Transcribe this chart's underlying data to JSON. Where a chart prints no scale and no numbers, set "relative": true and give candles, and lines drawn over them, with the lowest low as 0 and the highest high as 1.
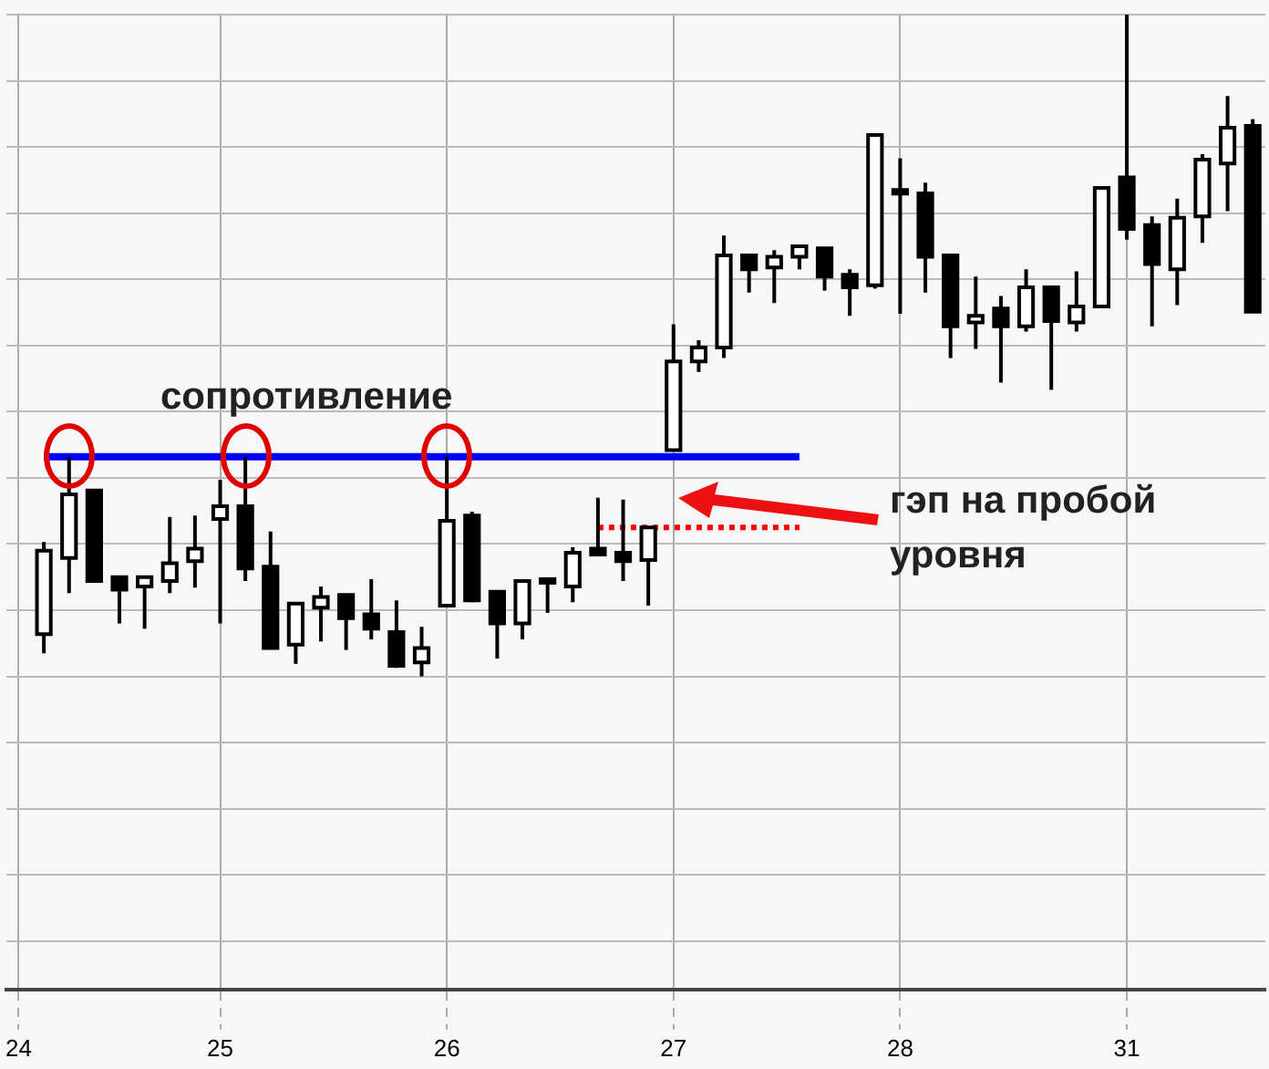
{
  "chart_data": {
    "type": "candlestick",
    "relative": true,
    "grid": true,
    "tick_labels": "x",
    "categories": [
      "24",
      null,
      null,
      null,
      null,
      null,
      null,
      null,
      "25",
      null,
      null,
      null,
      null,
      null,
      null,
      null,
      null,
      "26",
      null,
      null,
      null,
      null,
      null,
      null,
      null,
      null,
      "27",
      null,
      null,
      null,
      null,
      null,
      null,
      null,
      null,
      "28",
      null,
      null,
      null,
      null,
      null,
      null,
      null,
      null,
      "31",
      null,
      null,
      null,
      null,
      null
    ],
    "ohlc": [
      null,
      [
        0.064,
        0.203,
        0.035,
        0.19
      ],
      [
        0.179,
        0.332,
        0.126,
        0.275
      ],
      [
        0.281,
        0.283,
        0.144,
        0.144
      ],
      [
        0.15,
        0.15,
        0.08,
        0.131
      ],
      [
        0.136,
        0.15,
        0.072,
        0.15
      ],
      [
        0.144,
        0.241,
        0.126,
        0.171
      ],
      [
        0.174,
        0.243,
        0.134,
        0.193
      ],
      [
        0.238,
        0.297,
        0.08,
        0.257
      ],
      [
        0.257,
        0.332,
        0.144,
        0.163
      ],
      [
        0.166,
        0.219,
        0.043,
        0.043
      ],
      [
        0.048,
        0.11,
        0.019,
        0.11
      ],
      [
        0.104,
        0.136,
        0.053,
        0.12
      ],
      [
        0.123,
        0.123,
        0.04,
        0.088
      ],
      [
        0.094,
        0.147,
        0.056,
        0.072
      ],
      [
        0.067,
        0.115,
        0.013,
        0.016
      ],
      [
        0.021,
        0.075,
        0,
        0.043
      ],
      [
        0.107,
        0.332,
        0.107,
        0.235
      ],
      [
        0.243,
        0.249,
        0.112,
        0.115
      ],
      [
        0.128,
        0.128,
        0.027,
        0.08
      ],
      [
        0.08,
        0.144,
        0.056,
        0.144
      ],
      [
        0.142,
        0.147,
        0.096,
        0.147
      ],
      [
        0.136,
        0.195,
        0.112,
        0.187
      ],
      [
        0.193,
        0.27,
        0.184,
        0.184
      ],
      [
        0.187,
        0.267,
        0.144,
        0.174
      ],
      [
        0.176,
        0.225,
        0.107,
        0.225
      ],
      [
        0.342,
        0.532,
        0.342,
        0.476
      ],
      [
        0.476,
        0.508,
        0.46,
        0.497
      ],
      [
        0.497,
        0.666,
        0.481,
        0.636
      ],
      [
        0.636,
        0.636,
        0.58,
        0.615
      ],
      [
        0.618,
        0.644,
        0.564,
        0.634
      ],
      [
        0.634,
        0.65,
        0.615,
        0.65
      ],
      [
        0.647,
        0.647,
        0.583,
        0.604
      ],
      [
        0.607,
        0.615,
        0.545,
        0.588
      ],
      [
        0.591,
        0.818,
        0.586,
        0.818
      ],
      [
        0.735,
        0.783,
        0.548,
        0.73
      ],
      [
        0.73,
        0.746,
        0.58,
        0.634
      ],
      [
        0.636,
        0.636,
        0.481,
        0.529
      ],
      [
        0.535,
        0.604,
        0.495,
        0.545
      ],
      [
        0.556,
        0.575,
        0.444,
        0.529
      ],
      [
        0.529,
        0.615,
        0.521,
        0.588
      ],
      [
        0.588,
        0.588,
        0.433,
        0.537
      ],
      [
        0.535,
        0.612,
        0.521,
        0.559
      ],
      [
        0.559,
        0.738,
        0.559,
        0.738
      ],
      [
        0.754,
        1,
        0.66,
        0.676
      ],
      [
        0.682,
        0.695,
        0.529,
        0.623
      ],
      [
        0.615,
        0.722,
        0.561,
        0.693
      ],
      [
        0.695,
        0.789,
        0.655,
        0.781
      ],
      [
        0.775,
        0.877,
        0.703,
        0.829
      ],
      [
        0.832,
        0.842,
        0.551,
        0.551
      ]
    ],
    "series": [
      {
        "type": "line",
        "color": "#0000ff",
        "line_style": "solid",
        "values": [
          null,
          0.332,
          null,
          null,
          null,
          null,
          null,
          null,
          null,
          null,
          null,
          null,
          null,
          null,
          null,
          null,
          null,
          null,
          null,
          null,
          null,
          null,
          null,
          null,
          null,
          null,
          null,
          null,
          null,
          null,
          null,
          0.332,
          null,
          null,
          null,
          null,
          null,
          null,
          null,
          null,
          null,
          null,
          null,
          null,
          null,
          null,
          null,
          null,
          null,
          null
        ]
      },
      {
        "type": "line",
        "color": "#ff0000",
        "line_style": "dotted",
        "values": [
          null,
          null,
          null,
          null,
          null,
          null,
          null,
          null,
          null,
          null,
          null,
          null,
          null,
          null,
          null,
          null,
          null,
          null,
          null,
          null,
          null,
          null,
          null,
          0.225,
          null,
          null,
          null,
          null,
          null,
          null,
          null,
          0.225,
          null,
          null,
          null,
          null,
          null,
          null,
          null,
          null,
          null,
          null,
          null,
          null,
          null,
          null,
          null,
          null,
          null,
          null
        ]
      }
    ],
    "annotations": [
      "сопротивление",
      "гэп на пробой уровня"
    ]
  }
}
